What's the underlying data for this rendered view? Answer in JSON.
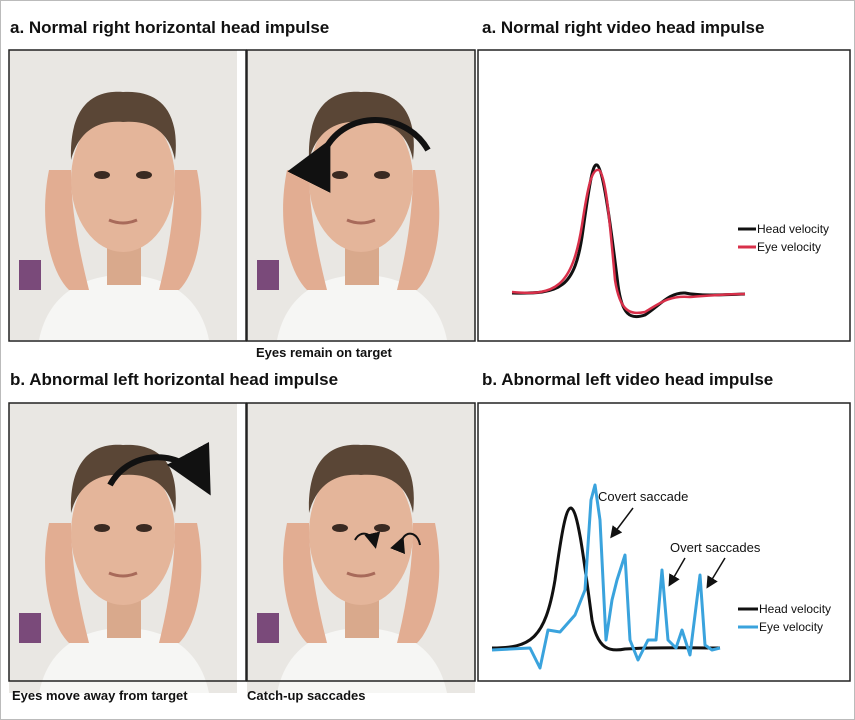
{
  "top": {
    "photo_title": "a. Normal right horizontal head impulse",
    "photo_caption": "Eyes remain on target",
    "graph_title": "a. Normal right video head impulse",
    "legend": [
      "Head velocity",
      "Eye velocity"
    ]
  },
  "bottom": {
    "photo_title": "b. Abnormal left horizontal head impulse",
    "photo_captions": [
      "Eyes move away from target",
      "Catch-up saccades"
    ],
    "graph_title": "b. Abnormal left video head impulse",
    "annotations": [
      "Covert saccade",
      "Overt saccades"
    ],
    "legend": [
      "Head velocity",
      "Eye velocity"
    ]
  }
}
